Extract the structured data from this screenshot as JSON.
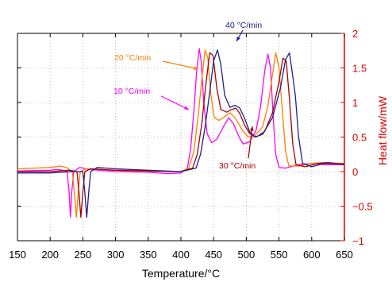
{
  "chart_data": {
    "type": "line",
    "xlabel": "Temperature/°C",
    "ylabel": "Heat flow/mW",
    "xlim": [
      150,
      650
    ],
    "ylim": [
      -1,
      2
    ],
    "xticks": [
      "150",
      "200",
      "250",
      "300",
      "350",
      "400",
      "450",
      "500",
      "550",
      "600",
      "650"
    ],
    "yticks": [
      "−1",
      "−0.5",
      "0",
      "0.5",
      "1",
      "1.5",
      "2"
    ],
    "grid": true,
    "annotations": [
      {
        "text": "40 °C/min",
        "color": "#1f1f8a",
        "series": 3
      },
      {
        "text": "20 °C/min",
        "color": "#ff7f00",
        "series": 1
      },
      {
        "text": "10 °C/min",
        "color": "#ff00ff",
        "series": 0
      },
      {
        "text": "30 °C/min",
        "color": "#a50000",
        "series": 2
      }
    ],
    "series": [
      {
        "color": "#ff00ff",
        "points": [
          [
            150,
            0.01
          ],
          [
            200,
            0.02
          ],
          [
            210,
            0.03
          ],
          [
            220,
            0.02
          ],
          [
            226,
            0.0
          ],
          [
            229,
            -0.3
          ],
          [
            231,
            -0.66
          ],
          [
            233,
            -0.3
          ],
          [
            236,
            0.0
          ],
          [
            245,
            0.06
          ],
          [
            260,
            0.03
          ],
          [
            300,
            0.0
          ],
          [
            350,
            -0.01
          ],
          [
            380,
            -0.03
          ],
          [
            400,
            -0.02
          ],
          [
            410,
            0.05
          ],
          [
            415,
            0.35
          ],
          [
            420,
            0.9
          ],
          [
            424,
            1.45
          ],
          [
            428,
            1.78
          ],
          [
            431,
            1.6
          ],
          [
            435,
            1.0
          ],
          [
            440,
            0.55
          ],
          [
            447,
            0.42
          ],
          [
            455,
            0.47
          ],
          [
            465,
            0.65
          ],
          [
            473,
            0.78
          ],
          [
            480,
            0.7
          ],
          [
            488,
            0.52
          ],
          [
            495,
            0.4
          ],
          [
            505,
            0.43
          ],
          [
            515,
            0.6
          ],
          [
            522,
            0.95
          ],
          [
            528,
            1.45
          ],
          [
            533,
            1.7
          ],
          [
            537,
            1.5
          ],
          [
            541,
            0.8
          ],
          [
            545,
            0.25
          ],
          [
            550,
            0.06
          ],
          [
            560,
            0.05
          ],
          [
            580,
            0.1
          ],
          [
            600,
            0.12
          ],
          [
            620,
            0.1
          ],
          [
            650,
            0.1
          ]
        ]
      },
      {
        "color": "#ff7f00",
        "points": [
          [
            150,
            0.04
          ],
          [
            200,
            0.06
          ],
          [
            215,
            0.08
          ],
          [
            225,
            0.06
          ],
          [
            234,
            0.0
          ],
          [
            237,
            -0.3
          ],
          [
            240,
            -0.66
          ],
          [
            243,
            -0.3
          ],
          [
            246,
            0.0
          ],
          [
            255,
            0.04
          ],
          [
            300,
            0.02
          ],
          [
            350,
            0.0
          ],
          [
            400,
            0.0
          ],
          [
            412,
            0.05
          ],
          [
            420,
            0.3
          ],
          [
            427,
            0.85
          ],
          [
            432,
            1.35
          ],
          [
            437,
            1.76
          ],
          [
            441,
            1.65
          ],
          [
            446,
            1.1
          ],
          [
            451,
            0.78
          ],
          [
            458,
            0.74
          ],
          [
            468,
            0.8
          ],
          [
            475,
            0.85
          ],
          [
            481,
            0.8
          ],
          [
            488,
            0.7
          ],
          [
            495,
            0.58
          ],
          [
            503,
            0.5
          ],
          [
            513,
            0.52
          ],
          [
            525,
            0.65
          ],
          [
            533,
            0.95
          ],
          [
            540,
            1.4
          ],
          [
            545,
            1.72
          ],
          [
            550,
            1.5
          ],
          [
            555,
            0.9
          ],
          [
            560,
            0.3
          ],
          [
            565,
            0.08
          ],
          [
            580,
            0.08
          ],
          [
            600,
            0.12
          ],
          [
            620,
            0.13
          ],
          [
            650,
            0.12
          ]
        ]
      },
      {
        "color": "#a50000",
        "points": [
          [
            150,
            0.0
          ],
          [
            200,
            0.0
          ],
          [
            230,
            0.02
          ],
          [
            241,
            0.0
          ],
          [
            244,
            -0.3
          ],
          [
            247,
            -0.66
          ],
          [
            250,
            -0.3
          ],
          [
            253,
            0.0
          ],
          [
            262,
            0.04
          ],
          [
            300,
            0.02
          ],
          [
            350,
            0.01
          ],
          [
            400,
            0.0
          ],
          [
            418,
            0.05
          ],
          [
            425,
            0.25
          ],
          [
            432,
            0.7
          ],
          [
            438,
            1.25
          ],
          [
            444,
            1.72
          ],
          [
            449,
            1.68
          ],
          [
            455,
            1.2
          ],
          [
            461,
            0.9
          ],
          [
            470,
            0.86
          ],
          [
            478,
            0.9
          ],
          [
            484,
            0.92
          ],
          [
            490,
            0.84
          ],
          [
            497,
            0.68
          ],
          [
            505,
            0.55
          ],
          [
            515,
            0.5
          ],
          [
            528,
            0.58
          ],
          [
            540,
            0.85
          ],
          [
            550,
            1.3
          ],
          [
            556,
            1.64
          ],
          [
            561,
            1.6
          ],
          [
            566,
            1.05
          ],
          [
            571,
            0.4
          ],
          [
            576,
            0.1
          ],
          [
            590,
            0.07
          ],
          [
            610,
            0.12
          ],
          [
            625,
            0.13
          ],
          [
            650,
            0.1
          ]
        ]
      },
      {
        "color": "#1f1f8a",
        "points": [
          [
            150,
            -0.02
          ],
          [
            200,
            -0.02
          ],
          [
            235,
            0.0
          ],
          [
            250,
            0.0
          ],
          [
            253,
            -0.3
          ],
          [
            256,
            -0.66
          ],
          [
            259,
            -0.3
          ],
          [
            262,
            0.0
          ],
          [
            272,
            0.06
          ],
          [
            300,
            0.04
          ],
          [
            350,
            0.02
          ],
          [
            400,
            0.0
          ],
          [
            423,
            0.05
          ],
          [
            430,
            0.25
          ],
          [
            437,
            0.65
          ],
          [
            444,
            1.15
          ],
          [
            450,
            1.6
          ],
          [
            456,
            1.76
          ],
          [
            461,
            1.55
          ],
          [
            467,
            1.1
          ],
          [
            475,
            0.93
          ],
          [
            483,
            0.96
          ],
          [
            490,
            0.92
          ],
          [
            497,
            0.78
          ],
          [
            505,
            0.58
          ],
          [
            513,
            0.5
          ],
          [
            525,
            0.54
          ],
          [
            540,
            0.78
          ],
          [
            552,
            1.2
          ],
          [
            560,
            1.62
          ],
          [
            566,
            1.72
          ],
          [
            570,
            1.45
          ],
          [
            575,
            1.1
          ],
          [
            580,
            0.5
          ],
          [
            586,
            0.12
          ],
          [
            600,
            0.07
          ],
          [
            620,
            0.12
          ],
          [
            650,
            0.11
          ]
        ]
      }
    ]
  }
}
